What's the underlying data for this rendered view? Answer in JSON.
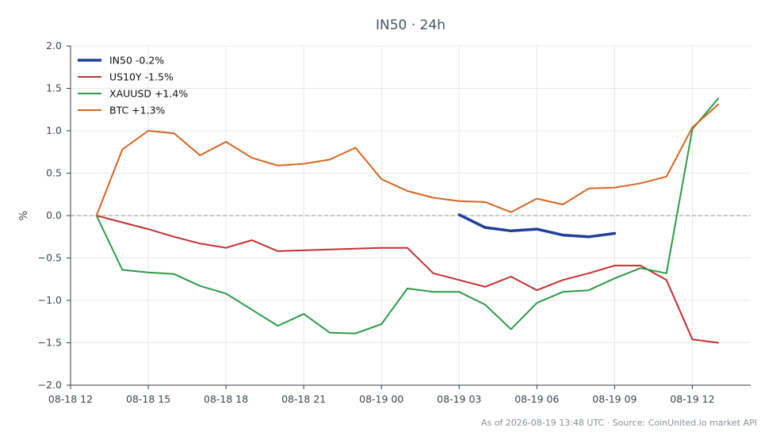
{
  "chart_data": {
    "type": "line",
    "title": "IN50 · 24h",
    "ylabel": "%",
    "xlabel": "",
    "ylim": [
      -2.0,
      2.0
    ],
    "yticks": [
      "2.0",
      "1.5",
      "1.0",
      "0.5",
      "0.0",
      "−0.5",
      "−1.0",
      "−1.5",
      "−2.0"
    ],
    "ytick_values": [
      2.0,
      1.5,
      1.0,
      0.5,
      0.0,
      -0.5,
      -1.0,
      -1.5,
      -2.0
    ],
    "xlim": [
      "08-18 12:00",
      "08-19 14:15"
    ],
    "xticks": [
      {
        "at": "08-18 12:00",
        "label": "08-18 12"
      },
      {
        "at": "08-18 15:00",
        "label": "08-18 15"
      },
      {
        "at": "08-18 18:00",
        "label": "08-18 18"
      },
      {
        "at": "08-18 21:00",
        "label": "08-18 21"
      },
      {
        "at": "08-19 00:00",
        "label": "08-19 00"
      },
      {
        "at": "08-19 03:00",
        "label": "08-19 03"
      },
      {
        "at": "08-19 06:00",
        "label": "08-19 06"
      },
      {
        "at": "08-19 09:00",
        "label": "08-19 09"
      },
      {
        "at": "08-19 12:00",
        "label": "08-19 12"
      }
    ],
    "grid": true,
    "zero_line": true,
    "legend_position": "top-left",
    "series": [
      {
        "name": "IN50 -0.2%",
        "color": "#1f3f99",
        "x": [
          "08-19 03:00",
          "08-19 04:00",
          "08-19 05:00",
          "08-19 06:00",
          "08-19 07:00",
          "08-19 08:00",
          "08-19 09:00"
        ],
        "values": [
          0.01,
          -0.14,
          -0.18,
          -0.16,
          -0.23,
          -0.25,
          -0.21
        ]
      },
      {
        "name": "US10Y -1.5%",
        "color": "#c62f2f",
        "x": [
          "08-18 13:00",
          "08-18 14:00",
          "08-18 15:00",
          "08-18 16:00",
          "08-18 17:00",
          "08-18 18:00",
          "08-18 19:00",
          "08-18 20:00",
          "08-18 21:00",
          "08-18 22:00",
          "08-18 23:00",
          "08-19 00:00",
          "08-19 01:00",
          "08-19 02:00",
          "08-19 03:00",
          "08-19 04:00",
          "08-19 05:00",
          "08-19 06:00",
          "08-19 07:00",
          "08-19 08:00",
          "08-19 09:00",
          "08-19 10:00",
          "08-19 11:00",
          "08-19 12:00",
          "08-19 13:00"
        ],
        "values": [
          0.0,
          -0.08,
          -0.16,
          -0.25,
          -0.33,
          -0.38,
          -0.29,
          -0.42,
          -0.41,
          -0.4,
          -0.39,
          -0.38,
          -0.38,
          -0.68,
          -0.76,
          -0.84,
          -0.72,
          -0.88,
          -0.76,
          -0.68,
          -0.59,
          -0.59,
          -0.76,
          -1.46,
          -1.5
        ]
      },
      {
        "name": "XAUUSD +1.4%",
        "color": "#2a9d46",
        "x": [
          "08-18 13:00",
          "08-18 14:00",
          "08-18 15:00",
          "08-18 16:00",
          "08-18 17:00",
          "08-18 18:00",
          "08-18 19:00",
          "08-18 20:00",
          "08-18 21:00",
          "08-18 22:00",
          "08-18 23:00",
          "08-19 00:00",
          "08-19 01:00",
          "08-19 02:00",
          "08-19 03:00",
          "08-19 04:00",
          "08-19 05:00",
          "08-19 06:00",
          "08-19 07:00",
          "08-19 08:00",
          "08-19 09:00",
          "08-19 10:00",
          "08-19 11:00",
          "08-19 12:00",
          "08-19 13:00"
        ],
        "values": [
          0.0,
          -0.64,
          -0.67,
          -0.69,
          -0.83,
          -0.92,
          -1.11,
          -1.3,
          -1.16,
          -1.38,
          -1.39,
          -1.28,
          -0.86,
          -0.9,
          -0.9,
          -1.05,
          -1.34,
          -1.03,
          -0.9,
          -0.88,
          -0.74,
          -0.62,
          -0.68,
          1.02,
          1.38
        ]
      },
      {
        "name": "BTC +1.3%",
        "color": "#d9641e",
        "x": [
          "08-18 13:00",
          "08-18 14:00",
          "08-18 15:00",
          "08-18 16:00",
          "08-18 17:00",
          "08-18 18:00",
          "08-18 19:00",
          "08-18 20:00",
          "08-18 21:00",
          "08-18 22:00",
          "08-18 23:00",
          "08-19 00:00",
          "08-19 01:00",
          "08-19 02:00",
          "08-19 03:00",
          "08-19 04:00",
          "08-19 05:00",
          "08-19 06:00",
          "08-19 07:00",
          "08-19 08:00",
          "08-19 09:00",
          "08-19 10:00",
          "08-19 11:00",
          "08-19 12:00",
          "08-19 13:00"
        ],
        "values": [
          0.0,
          0.78,
          1.0,
          0.97,
          0.71,
          0.87,
          0.68,
          0.59,
          0.61,
          0.66,
          0.8,
          0.43,
          0.29,
          0.21,
          0.17,
          0.16,
          0.04,
          0.2,
          0.13,
          0.32,
          0.33,
          0.38,
          0.46,
          1.04,
          1.31
        ]
      }
    ]
  },
  "footer": "As of 2026-08-19 13:48 UTC · Source: CoinUnited.io market API",
  "colors": {
    "zero_line": "#8a9aa8",
    "grid": "#e6e8eb",
    "axis": "#333d47"
  }
}
